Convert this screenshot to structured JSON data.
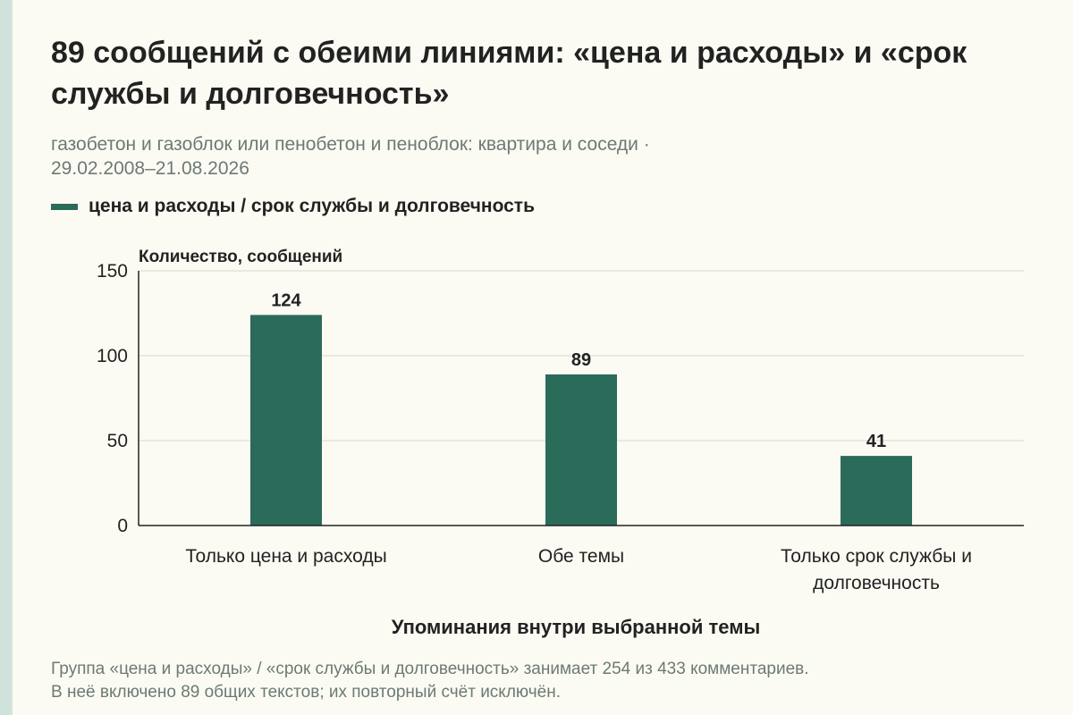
{
  "header": {
    "title": "89 сообщений с обеими линиями: «цена и расходы» и «срок службы и долговечность»",
    "subtitle_line1": "газобетон и газоблок или пенобетон и пеноблок: квартира и соседи ·",
    "subtitle_line2": "29.02.2008–21.08.2026"
  },
  "footnote": {
    "line1": "Группа «цена и расходы» / «срок службы и долговечность» занимает 254 из 433 комментариев.",
    "line2": "В неё включено 89 общих текстов; их повторный счёт исключён."
  },
  "colors": {
    "bar": "#2a6b5a",
    "accent_strip": "#cfe3dc",
    "background": "#fcfbf3"
  },
  "chart_data": {
    "type": "bar",
    "title": "89 сообщений с обеими линиями: «цена и расходы» и «срок службы и долговечность»",
    "legend": [
      "цена и расходы / срок службы и долговечность"
    ],
    "legend_position": "top-left",
    "ylabel": "Количество, сообщений",
    "xlabel": "Упоминания внутри выбранной темы",
    "ylim": [
      0,
      150
    ],
    "yticks": [
      0,
      50,
      100,
      150
    ],
    "grid": true,
    "categories": [
      [
        "Только цена и расходы"
      ],
      [
        "Обе темы"
      ],
      [
        "Только срок службы и",
        "долговечность"
      ]
    ],
    "series": [
      {
        "name": "цена и расходы / срок службы и долговечность",
        "values": [
          124,
          89,
          41
        ]
      }
    ]
  }
}
